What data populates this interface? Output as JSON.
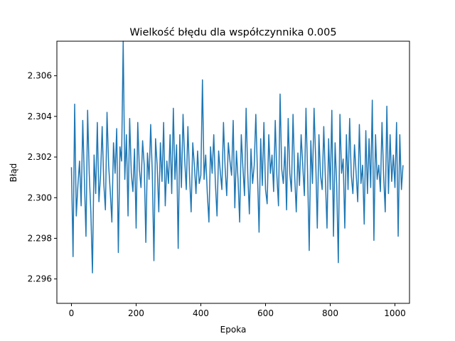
{
  "chart_data": {
    "type": "line",
    "title": "Wielkość błędu dla współczynnika 0.005",
    "xlabel": "Epoka",
    "ylabel": "Błąd",
    "xlim": [
      -45,
      1045
    ],
    "ylim": [
      2.2948,
      2.3077
    ],
    "xticks": [
      0,
      200,
      400,
      600,
      800,
      1000
    ],
    "yticks": [
      2.296,
      2.298,
      2.3,
      2.302,
      2.304,
      2.306
    ],
    "ytick_labels": [
      "2.296",
      "2.298",
      "2.300",
      "2.302",
      "2.304",
      "2.306"
    ],
    "grid": false,
    "legend": "none",
    "series": [
      {
        "color": "#1f77b4",
        "x_start": 0,
        "x_step": 5,
        "values": [
          2.3015,
          2.2971,
          2.3046,
          2.2991,
          2.3006,
          2.3018,
          2.2996,
          2.3038,
          2.3009,
          2.2981,
          2.3043,
          2.3012,
          2.2993,
          2.2963,
          2.3021,
          2.3002,
          2.3037,
          2.2998,
          2.3011,
          2.3035,
          2.3007,
          2.2994,
          2.3042,
          2.3016,
          2.3003,
          2.2988,
          2.3027,
          2.3012,
          2.3034,
          2.2973,
          2.3025,
          2.3018,
          2.3077,
          2.3009,
          2.3031,
          2.2991,
          2.3039,
          2.3012,
          2.3003,
          2.3024,
          2.2985,
          2.3037,
          2.3014,
          2.3005,
          2.3028,
          2.3016,
          2.2978,
          2.3022,
          2.3009,
          2.3036,
          2.3012,
          2.2969,
          2.3029,
          2.3016,
          2.2993,
          2.3027,
          2.3008,
          2.3037,
          2.2996,
          2.3018,
          2.3007,
          2.3031,
          2.3002,
          2.3044,
          2.3009,
          2.3026,
          2.2975,
          2.3031,
          2.3005,
          2.3041,
          2.3019,
          2.3004,
          2.3035,
          2.3011,
          2.2993,
          2.3027,
          2.3016,
          2.3002,
          2.3023,
          2.3007,
          2.3011,
          2.3058,
          2.3009,
          2.3021,
          2.3002,
          2.2988,
          2.3025,
          2.3012,
          2.3031,
          2.3007,
          2.2991,
          2.3023,
          2.3013,
          2.3004,
          2.3037,
          2.3015,
          2.3001,
          2.3027,
          2.3018,
          2.3011,
          2.3038,
          2.2995,
          2.3023,
          2.3009,
          2.2988,
          2.3031,
          2.3015,
          2.3001,
          2.3044,
          2.3012,
          2.2992,
          2.3024,
          2.3007,
          2.3016,
          2.3041,
          2.3012,
          2.2983,
          2.3029,
          2.3006,
          2.3037,
          2.3004,
          2.2997,
          2.3031,
          2.3012,
          2.3021,
          2.3003,
          2.3038,
          2.3011,
          2.2996,
          2.3051,
          2.3014,
          2.3007,
          2.3025,
          2.2994,
          2.3039,
          2.3012,
          2.3003,
          2.3041,
          2.3011,
          2.2993,
          2.3022,
          2.3006,
          2.3031,
          2.3016,
          2.3001,
          2.3044,
          2.3012,
          2.2974,
          2.3028,
          2.3007,
          2.3044,
          2.3019,
          2.2985,
          2.3031,
          2.3011,
          2.3004,
          2.3035,
          2.3009,
          2.2985,
          2.3029,
          2.3004,
          2.3043,
          2.2981,
          2.3027,
          2.3006,
          2.2968,
          2.3041,
          2.3012,
          2.3019,
          2.2985,
          2.3031,
          2.3004,
          2.3039,
          2.3011,
          2.3002,
          2.3026,
          2.3012,
          2.2998,
          2.3036,
          2.3007,
          2.3016,
          2.2987,
          2.3033,
          2.3002,
          2.3029,
          2.3005,
          2.3048,
          2.2979,
          2.3031,
          2.3009,
          2.3016,
          2.3003,
          2.3037,
          2.3011,
          2.2993,
          2.3045,
          2.3002,
          2.3031,
          2.3008,
          2.3021,
          2.3005,
          2.3037,
          2.2981,
          2.3031,
          2.3004,
          2.3016
        ]
      }
    ]
  }
}
